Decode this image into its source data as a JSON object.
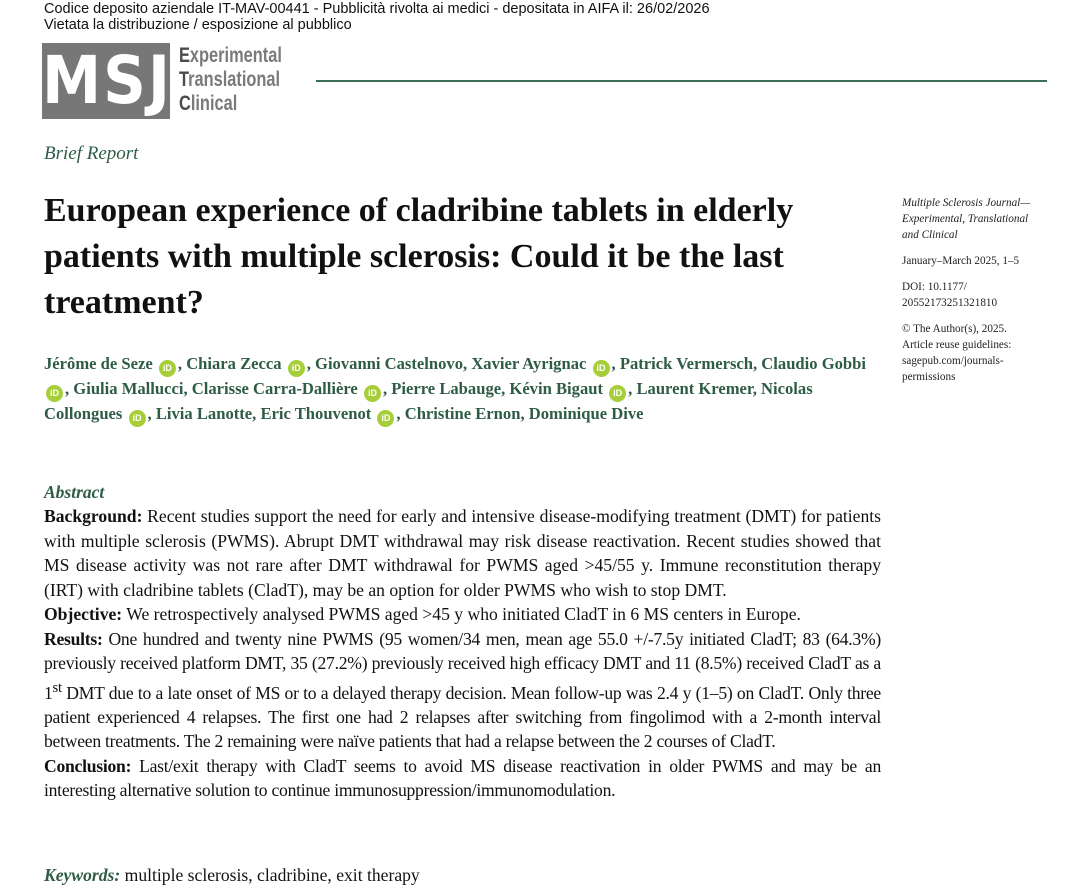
{
  "notice": {
    "line1": "Codice deposito aziendale IT-MAV-00441 - Pubblicità rivolta ai medici - depositata in AIFA il: 26/02/2026",
    "line2": "Vietata la distribuzione / esposizione al pubblico"
  },
  "logo": {
    "mark": "MSJ",
    "word1_initial": "E",
    "word1_rest": "xperimental",
    "word2_initial": "T",
    "word2_rest": "ranslational",
    "word3_initial": "C",
    "word3_rest": "linical",
    "rule_color": "#3c6e58"
  },
  "article_type": "Brief Report",
  "title": "European experience of cladribine tablets in elderly patients with multiple sclerosis: Could it be the last treatment?",
  "sidebar": {
    "journal_line1": "Multiple Sclerosis Journal—",
    "journal_line2": "Experimental, Translational",
    "journal_line3": "and Clinical",
    "issue": "January–March 2025, 1–5",
    "doi_line1": "DOI: 10.1177/",
    "doi_line2": "20552173251321810",
    "copyright": "© The Author(s), 2025.",
    "reuse_line1": "Article reuse guidelines:",
    "reuse_line2": "sagepub.com/journals-",
    "reuse_line3": "permissions"
  },
  "authors": [
    {
      "name": "Jérôme de Seze",
      "orcid": true
    },
    {
      "name": "Chiara Zecca",
      "orcid": true
    },
    {
      "name": "Giovanni Castelnovo",
      "orcid": false
    },
    {
      "name": "Xavier Ayrignac",
      "orcid": true
    },
    {
      "name": "Patrick Vermersch",
      "orcid": false
    },
    {
      "name": "Claudio Gobbi",
      "orcid": true
    },
    {
      "name": "Giulia Mallucci",
      "orcid": false
    },
    {
      "name": "Clarisse Carra-Dallière",
      "orcid": true
    },
    {
      "name": "Pierre Labauge",
      "orcid": false
    },
    {
      "name": "Kévin Bigaut",
      "orcid": true
    },
    {
      "name": "Laurent Kremer",
      "orcid": false
    },
    {
      "name": "Nicolas Collongues",
      "orcid": true
    },
    {
      "name": "Livia Lanotte",
      "orcid": false
    },
    {
      "name": "Eric Thouvenot",
      "orcid": true
    },
    {
      "name": "Christine Ernon",
      "orcid": false
    },
    {
      "name": "Dominique Dive",
      "orcid": false
    }
  ],
  "orcid_icon_text": "iD",
  "abstract": {
    "heading": "Abstract",
    "background_label": "Background:",
    "background": " Recent studies support the need for early and intensive disease-modifying treatment (DMT) for patients with multiple sclerosis (PWMS). Abrupt DMT withdrawal may risk disease reactivation. Recent studies showed that MS disease activity was not rare after DMT withdrawal for PWMS aged >45/55 y. Immune reconstitution therapy (IRT) with cladribine tablets (CladT), may be an option for older PWMS who wish to stop DMT.",
    "objective_label": "Objective:",
    "objective": " We retrospectively analysed PWMS aged >45 y who initiated CladT in 6 MS centers in Europe.",
    "results_label": "Results:",
    "results_part1": " One hundred and twenty nine PWMS (95 women/34 men, mean age 55.0 +/-7.5y initiated CladT; 83 (64.3%) previously received platform DMT, 35 (27.2%) previously received high efficacy DMT and 11 (8.5%) received CladT as a 1",
    "results_sup": "st",
    "results_part2": " DMT due to a late onset of MS or to a delayed therapy decision. Mean follow-up was 2.4 y (1–5) on CladT. Only three patient experienced 4 relapses. The first one had 2 relapses after switching from fingolimod with a 2-month interval between treatments. The 2 remaining were naïve patients that had a relapse between the 2 courses of CladT.",
    "conclusion_label": "Conclusion:",
    "conclusion": " Last/exit therapy with CladT seems to avoid MS disease reactivation in older PWMS and may be an interesting alternative solution to continue immunosuppression/immunomodulation."
  },
  "keywords": {
    "label": "Keywords:",
    "text": " multiple sclerosis, cladribine, exit therapy"
  },
  "colors": {
    "accent_green": "#2f5c46",
    "orcid_green": "#a6ce39",
    "logo_gray": "#777777"
  }
}
